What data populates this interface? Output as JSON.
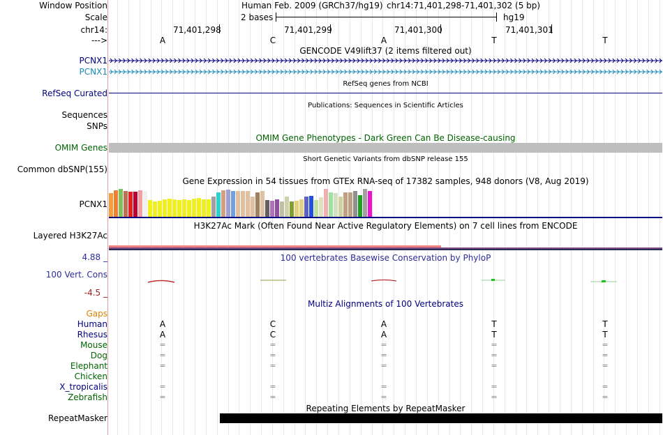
{
  "labels": {
    "window_position": "Window Position",
    "scale": "Scale",
    "chrom": "chr14:",
    "strand": "--->",
    "pcnx1_a": "PCNX1",
    "pcnx1_b": "PCNX1",
    "refseq": "RefSeq Curated",
    "sequences": "Sequences",
    "snps": "SNPs",
    "omim": "OMIM Genes",
    "dbsnp": "Common dbSNP(155)",
    "gtex": "PCNX1",
    "h3k27ac": "Layered H3K27Ac",
    "cons_max": "4.88 _",
    "cons": "100 Vert. Cons",
    "cons_min": "-4.5 _",
    "gaps": "Gaps",
    "species": [
      "Human",
      "Rhesus",
      "Mouse",
      "Dog",
      "Elephant",
      "Chicken",
      "X_tropicalis",
      "Zebrafish"
    ],
    "repeatmasker": "RepeatMasker"
  },
  "header": {
    "assembly": "Human Feb. 2009 (GRCh37/hg19)",
    "position": "chr14:71,401,298-71,401,302 (5 bp)",
    "scale_text": "2 bases",
    "scale_db": "hg19",
    "coords": [
      "71,401,298",
      "71,401,299",
      "71,401,300",
      "71,401,301"
    ]
  },
  "bases": [
    "A",
    "C",
    "A",
    "T",
    "T"
  ],
  "track_titles": {
    "gencode": "GENCODE V49lift37 (2 items filtered out)",
    "refseq": "RefSeq genes from NCBI",
    "publications": "Publications: Sequences in Scientific Articles",
    "omim": "OMIM Gene Phenotypes - Dark Green Can Be Disease-causing",
    "dbsnp": "Short Genetic Variants from dbSNP release 155",
    "gtex": "Gene Expression in 54 tissues from GTEx RNA-seq of 17382 samples, 948 donors (V8, Aug 2019)",
    "h3k27ac": "H3K27Ac Mark (Often Found Near Active Regulatory Elements) on 7 cell lines from ENCODE",
    "phylop": "100 vertebrates Basewise Conservation by PhyloP",
    "multiz": "Multiz Alignments of 100 Vertebrates",
    "repeatmasker": "Repeating Elements by RepeatMasker"
  },
  "alignment": {
    "Human": [
      "A",
      "C",
      "A",
      "T",
      "T"
    ],
    "Rhesus": [
      "A",
      "C",
      "A",
      "T",
      "T"
    ],
    "Mouse": [
      "=",
      "=",
      "=",
      "=",
      "="
    ],
    "Dog": [
      "=",
      "=",
      "=",
      "=",
      "="
    ],
    "Elephant": [
      "=",
      "=",
      "=",
      "=",
      "="
    ],
    "Chicken": [
      "",
      "",
      "",
      "",
      ""
    ],
    "X_tropicalis": [
      "=",
      "=",
      "=",
      "=",
      "="
    ],
    "Zebrafish": [
      "=",
      "=",
      "=",
      "=",
      "="
    ]
  },
  "colors": {
    "navy": "#000080",
    "teal": "#1a8ab8",
    "green": "#006400",
    "orange": "#e08000",
    "cons_label": "#2c2c9c",
    "cons_neg": "#a02020"
  },
  "gtex_tissue_expression_relative": [
    0.85,
    0.95,
    1.0,
    0.92,
    0.9,
    0.9,
    0.95,
    0.92,
    0.6,
    0.55,
    0.58,
    0.62,
    0.65,
    0.62,
    0.6,
    0.62,
    0.6,
    0.65,
    0.68,
    0.62,
    0.62,
    0.72,
    0.88,
    0.95,
    0.98,
    0.92,
    0.92,
    0.92,
    0.92,
    0.72,
    0.88,
    0.92,
    0.6,
    0.58,
    0.62,
    0.55,
    0.72,
    0.55,
    0.58,
    0.62,
    0.72,
    0.75,
    0.6,
    0.7,
    1.0,
    0.88,
    0.85,
    0.72,
    0.88,
    0.88,
    0.92,
    0.78,
    1.0,
    0.92
  ]
}
